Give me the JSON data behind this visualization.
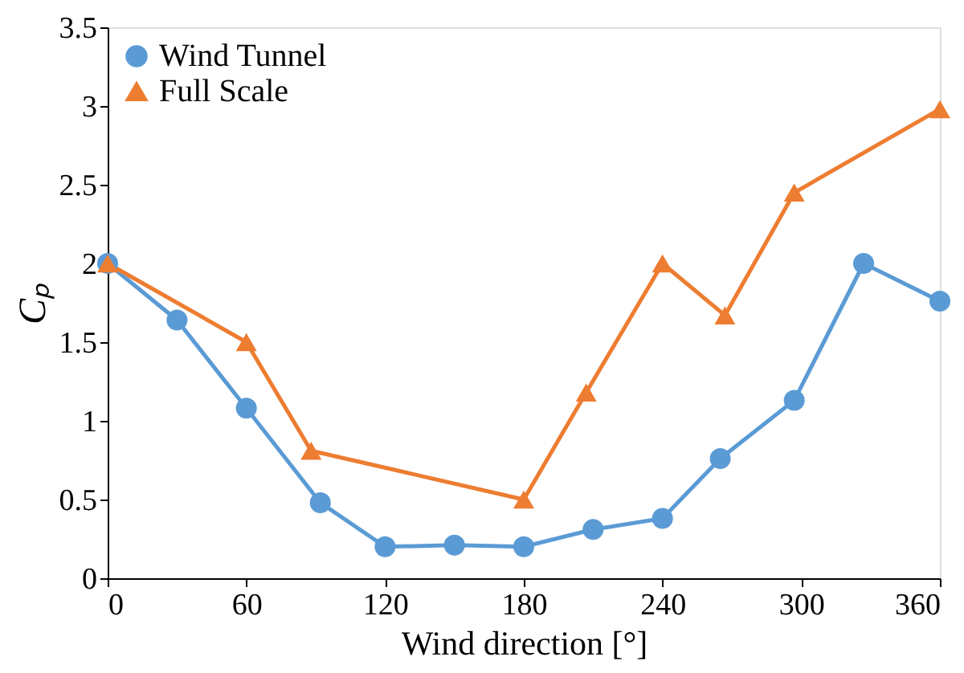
{
  "chart_data": {
    "type": "line",
    "xlabel": "Wind direction [°]",
    "ylabel": "Cₚ",
    "xlim": [
      0,
      360
    ],
    "xticks": [
      0,
      60,
      120,
      180,
      240,
      300,
      360
    ],
    "ylim": [
      0,
      3.5
    ],
    "yticks": [
      0,
      0.5,
      1,
      1.5,
      2,
      2.5,
      3,
      3.5
    ],
    "grid": false,
    "legend": "top left",
    "series": [
      {
        "name": "Wind Tunnel",
        "color": "#5b9bd5",
        "marker": "circle",
        "x": [
          0,
          30,
          60,
          92,
          120,
          150,
          180,
          210,
          240,
          265,
          297,
          327,
          360
        ],
        "values": [
          2.0,
          1.64,
          1.08,
          0.48,
          0.2,
          0.21,
          0.2,
          0.31,
          0.38,
          0.76,
          1.13,
          2.0,
          1.76
        ]
      },
      {
        "name": "Full Scale",
        "color": "#ed7d31",
        "marker": "triangle",
        "x": [
          0,
          60,
          88,
          180,
          207,
          240,
          267,
          297,
          360
        ],
        "values": [
          2.0,
          1.5,
          0.81,
          0.5,
          1.18,
          2.0,
          1.67,
          2.45,
          2.98
        ]
      }
    ]
  }
}
